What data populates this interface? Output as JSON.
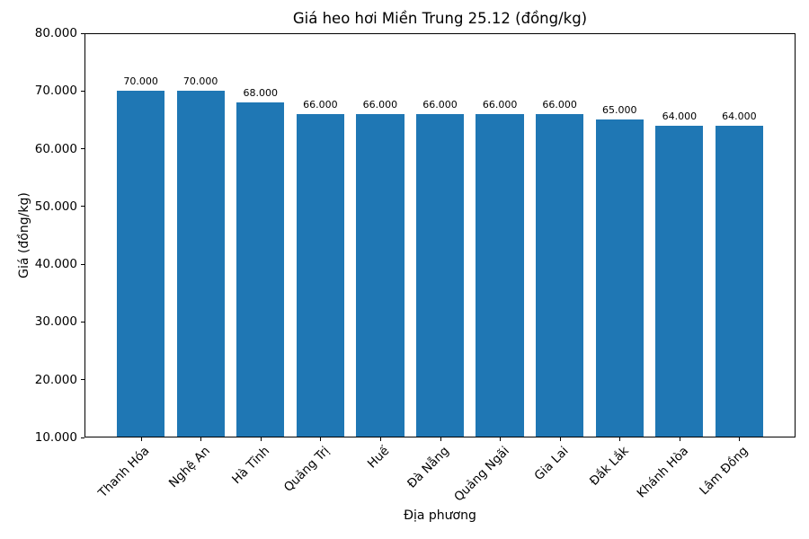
{
  "page": {
    "background_color": "#ffffff",
    "text_color": "#000000"
  },
  "chart_data": {
    "type": "bar",
    "title": "Giá heo hơi Miền Trung 25.12 (đồng/kg)",
    "xlabel": "Địa phương",
    "ylabel": "Giá (đồng/kg)",
    "categories": [
      "Thanh Hóa",
      "Nghệ An",
      "Hà Tĩnh",
      "Quảng Trị",
      "Huế",
      "Đà Nẵng",
      "Quảng Ngãi",
      "Gia Lai",
      "Đắk Lắk",
      "Khánh Hòa",
      "Lâm Đồng"
    ],
    "values": [
      70000,
      70000,
      68000,
      66000,
      66000,
      66000,
      66000,
      66000,
      65000,
      64000,
      64000
    ],
    "value_labels": [
      "70.000",
      "70.000",
      "68.000",
      "66.000",
      "66.000",
      "66.000",
      "66.000",
      "66.000",
      "65.000",
      "64.000",
      "64.000"
    ],
    "ylim": [
      10000,
      80000
    ],
    "yticks": [
      10000,
      20000,
      30000,
      40000,
      50000,
      60000,
      70000,
      80000
    ],
    "ytick_labels": [
      "10.000",
      "20.000",
      "30.000",
      "40.000",
      "50.000",
      "60.000",
      "70.000",
      "80.000"
    ],
    "bar_color": "#1f77b4",
    "grid": false,
    "legend": null,
    "bar_width_fraction": 0.8,
    "x_margin_fraction": 0.05
  }
}
